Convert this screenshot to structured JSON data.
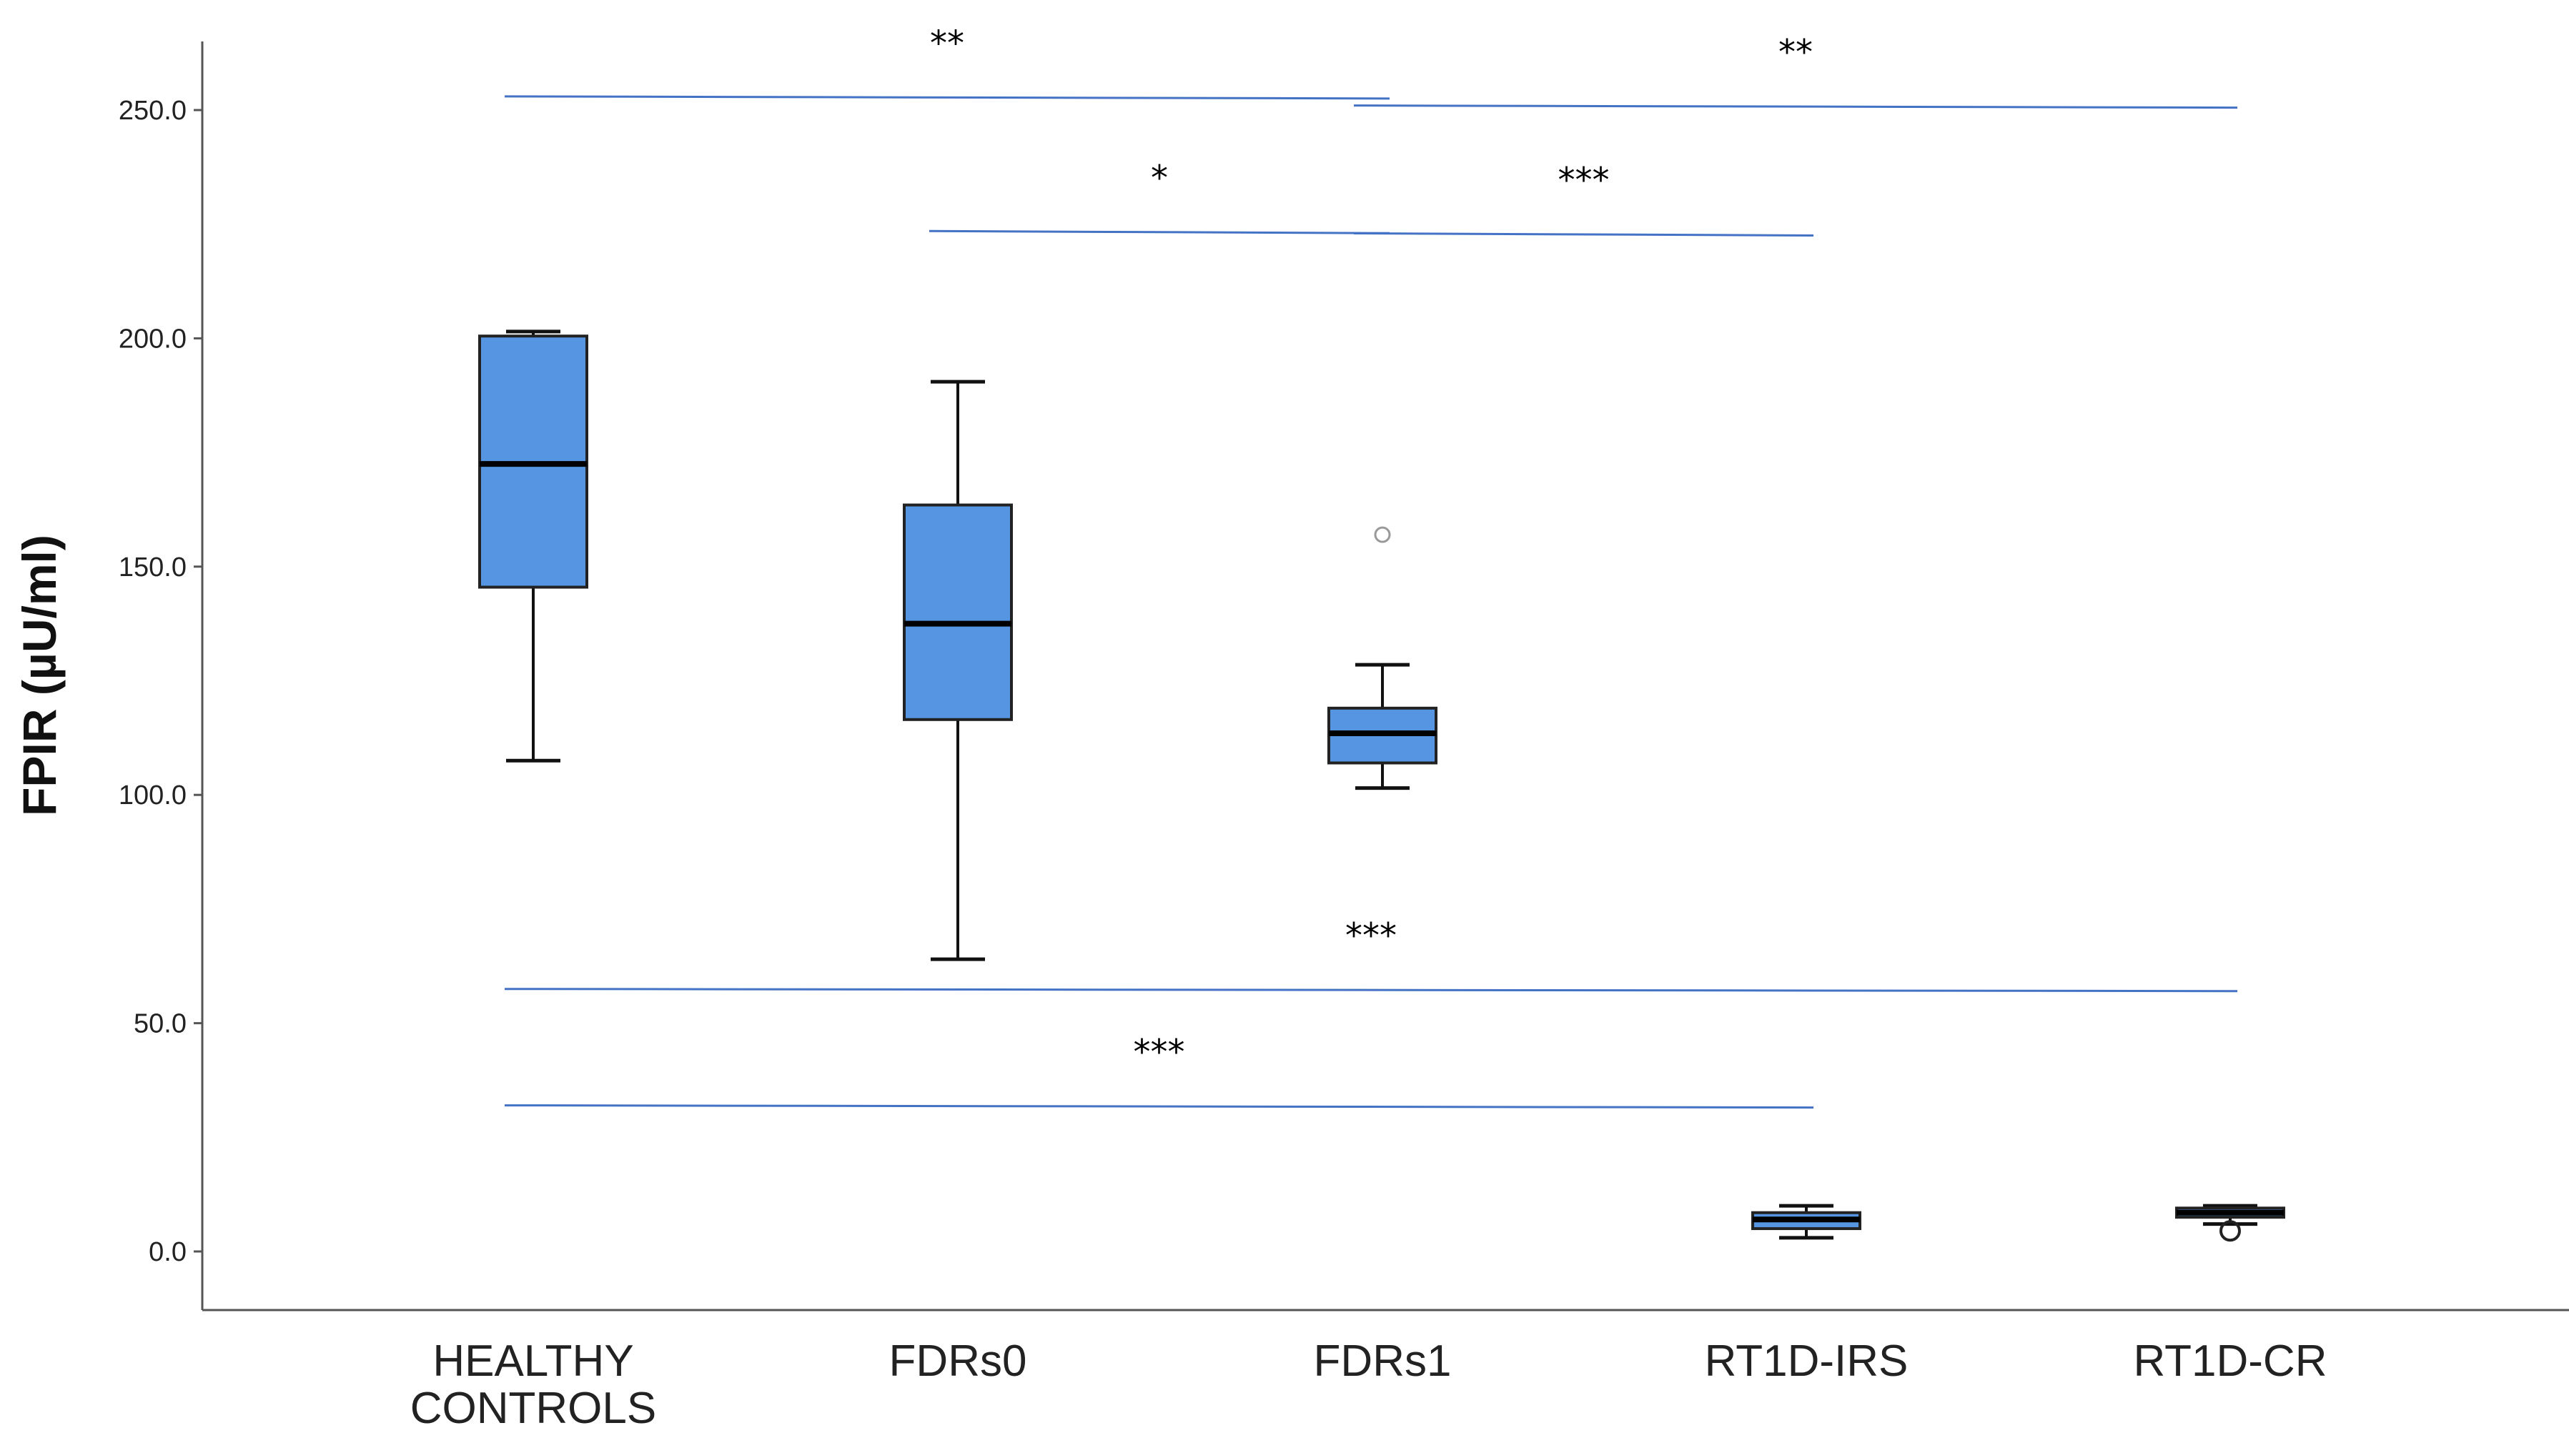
{
  "chart_data": {
    "type": "box",
    "title": "",
    "xlabel": "",
    "ylabel": "FPIR (µU/ml)",
    "ylim": [
      -13,
      278
    ],
    "yticks": [
      "0.0",
      "50.0",
      "100.0",
      "150.0",
      "200.0",
      "250.0"
    ],
    "yticks_values": [
      0,
      50,
      100,
      150,
      200,
      250
    ],
    "grid": false,
    "box_color": "#5595e2",
    "bracket_color": "#4472c4",
    "categories": [
      {
        "label_lines": [
          "HEALTHY",
          "CONTROLS"
        ],
        "min": 107.5,
        "q1": 145.5,
        "median": 172.5,
        "q3": 200.5,
        "max": 201.5,
        "outliers": []
      },
      {
        "label_lines": [
          "FDRs0"
        ],
        "min": 64.0,
        "q1": 116.5,
        "median": 137.5,
        "q3": 163.5,
        "max": 190.5,
        "outliers": []
      },
      {
        "label_lines": [
          "FDRs1"
        ],
        "min": 101.5,
        "q1": 107.0,
        "median": 113.5,
        "q3": 119.0,
        "max": 128.5,
        "outliers": [
          157.0
        ]
      },
      {
        "label_lines": [
          "RT1D-IRS"
        ],
        "min": 3.0,
        "q1": 5.0,
        "median": 7.0,
        "q3": 8.5,
        "max": 10.0,
        "outliers": []
      },
      {
        "label_lines": [
          "RT1D-CR"
        ],
        "min": 6.0,
        "q1": 7.5,
        "median": 8.5,
        "q3": 9.5,
        "max": 10.0,
        "outliers": [
          4.5
        ]
      }
    ],
    "significance": [
      {
        "from": 0,
        "to": 2,
        "y": 253,
        "label": "**"
      },
      {
        "from": 1,
        "to": 2,
        "y": 223.5,
        "label": "*"
      },
      {
        "from": 2,
        "to": 4,
        "y": 251,
        "label": "**"
      },
      {
        "from": 2,
        "to": 3,
        "y": 223,
        "label": "***"
      },
      {
        "from": 0,
        "to": 4,
        "y": 57.5,
        "label": "***"
      },
      {
        "from": 0,
        "to": 3,
        "y": 32,
        "label": "***"
      }
    ]
  }
}
